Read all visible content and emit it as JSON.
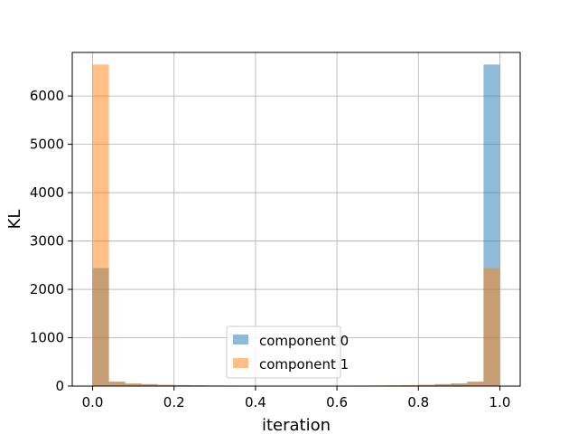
{
  "chart_data": {
    "type": "bar",
    "xlabel": "iteration",
    "ylabel": "KL",
    "xlim": [
      -0.05,
      1.05
    ],
    "ylim": [
      0,
      6900
    ],
    "grid": true,
    "legend_position": "bottom-center",
    "x_ticks": [
      0.0,
      0.2,
      0.4,
      0.6,
      0.8,
      1.0
    ],
    "x_tick_labels": [
      "0.0",
      "0.2",
      "0.4",
      "0.6",
      "0.8",
      "1.0"
    ],
    "y_ticks": [
      0,
      1000,
      2000,
      3000,
      4000,
      5000,
      6000
    ],
    "y_tick_labels": [
      "0",
      "1000",
      "2000",
      "3000",
      "4000",
      "5000",
      "6000"
    ],
    "bin_edges": [
      0.0,
      0.04,
      0.08,
      0.12,
      0.16,
      0.2,
      0.24,
      0.28,
      0.32,
      0.36,
      0.4,
      0.44,
      0.48,
      0.52,
      0.56,
      0.6,
      0.64,
      0.68,
      0.72,
      0.76,
      0.8,
      0.84,
      0.88,
      0.92,
      0.96,
      1.0
    ],
    "series": [
      {
        "name": "component 0",
        "color": "#1f77b4",
        "values": [
          2440,
          90,
          50,
          40,
          25,
          20,
          15,
          12,
          10,
          8,
          8,
          7,
          6,
          6,
          7,
          8,
          8,
          10,
          12,
          15,
          25,
          40,
          55,
          90,
          6650
        ]
      },
      {
        "name": "component 1",
        "color": "#ff7f0e",
        "values": [
          6650,
          90,
          55,
          40,
          25,
          15,
          12,
          10,
          8,
          8,
          7,
          6,
          6,
          7,
          8,
          8,
          10,
          12,
          15,
          20,
          25,
          40,
          50,
          90,
          2440
        ]
      }
    ],
    "opacity": 0.5
  }
}
